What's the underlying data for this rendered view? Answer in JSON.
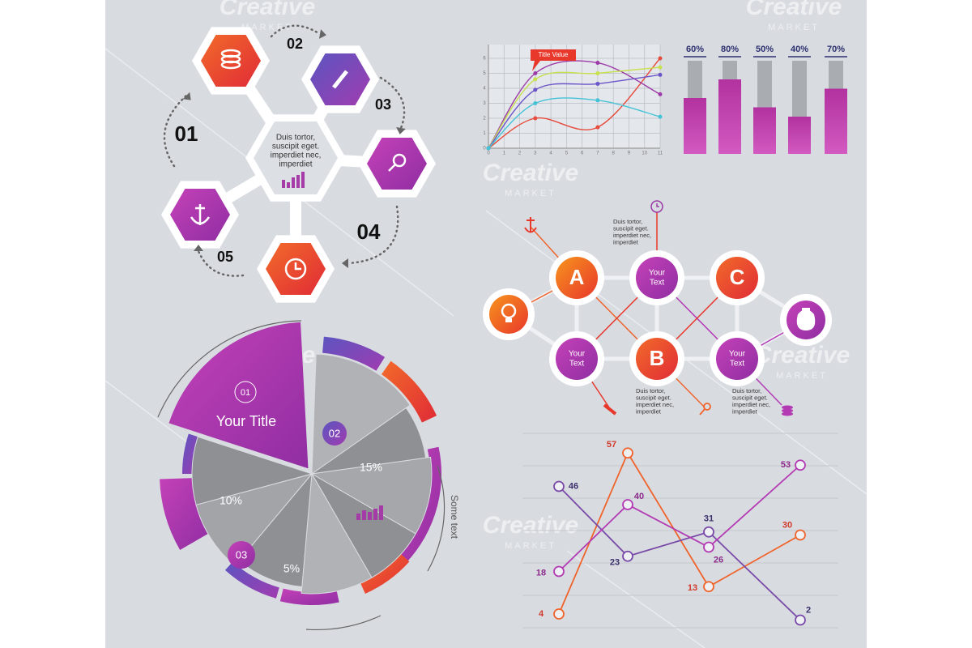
{
  "watermark": {
    "brand": "Creative",
    "sub": "MARKET"
  },
  "note_lines": [
    "Duis tortor,",
    "suscipit eget.",
    "imperdiet nec,",
    "imperdiet"
  ],
  "hex_diagram": {
    "steps": [
      "01",
      "02",
      "03",
      "04",
      "05"
    ]
  },
  "node_diagram": {
    "letters": [
      "A",
      "B",
      "C"
    ],
    "your_text": [
      "Your",
      "Text"
    ]
  },
  "pie": {
    "number": "01",
    "title": "Your Title",
    "badges": [
      "02",
      "03"
    ],
    "labels": [
      "15%",
      "10%",
      "5%"
    ],
    "side_text": "Some text"
  },
  "chart_data": [
    {
      "type": "line",
      "annotation": "Title Value",
      "x": [
        0,
        3,
        7,
        11
      ],
      "xlim": [
        0,
        11
      ],
      "ylim": [
        0,
        6
      ],
      "xticks": [
        0,
        1,
        2,
        3,
        4,
        5,
        6,
        7,
        8,
        9,
        10,
        11
      ],
      "yticks": [
        0,
        1,
        2,
        3,
        4,
        5,
        6
      ],
      "grid": true,
      "series": [
        {
          "color": "#e64a3b",
          "values": [
            0,
            2,
            1.4,
            6
          ]
        },
        {
          "color": "#9c3ba8",
          "values": [
            0,
            5,
            5.7,
            3.6
          ]
        },
        {
          "color": "#c6e04e",
          "values": [
            0,
            4.6,
            5,
            5.4
          ]
        },
        {
          "color": "#6b55c8",
          "values": [
            0,
            3.9,
            4.3,
            4.9
          ]
        },
        {
          "color": "#45c3d6",
          "values": [
            0,
            3,
            3.2,
            2.1
          ]
        }
      ]
    },
    {
      "type": "bar",
      "categories": [
        null,
        null,
        null,
        null,
        null
      ],
      "values": [
        60,
        80,
        50,
        40,
        70
      ],
      "value_labels": [
        "60%",
        "80%",
        "50%",
        "40%",
        "70%"
      ],
      "ylim": [
        0,
        100
      ],
      "color": "#a8329e"
    },
    {
      "type": "line",
      "categories": [
        null,
        null,
        null,
        null
      ],
      "ylim": [
        0,
        60
      ],
      "series": [
        {
          "color": "#f0642c",
          "label_color": "#d2392a",
          "values": [
            4,
            57,
            13,
            30
          ]
        },
        {
          "color": "#7a4aa8",
          "label_color": "#3a2f6b",
          "values": [
            46,
            23,
            31,
            2
          ]
        },
        {
          "color": "#b33ab3",
          "label_color": "#8c2a8a",
          "values": [
            18,
            40,
            26,
            53
          ]
        }
      ]
    }
  ]
}
